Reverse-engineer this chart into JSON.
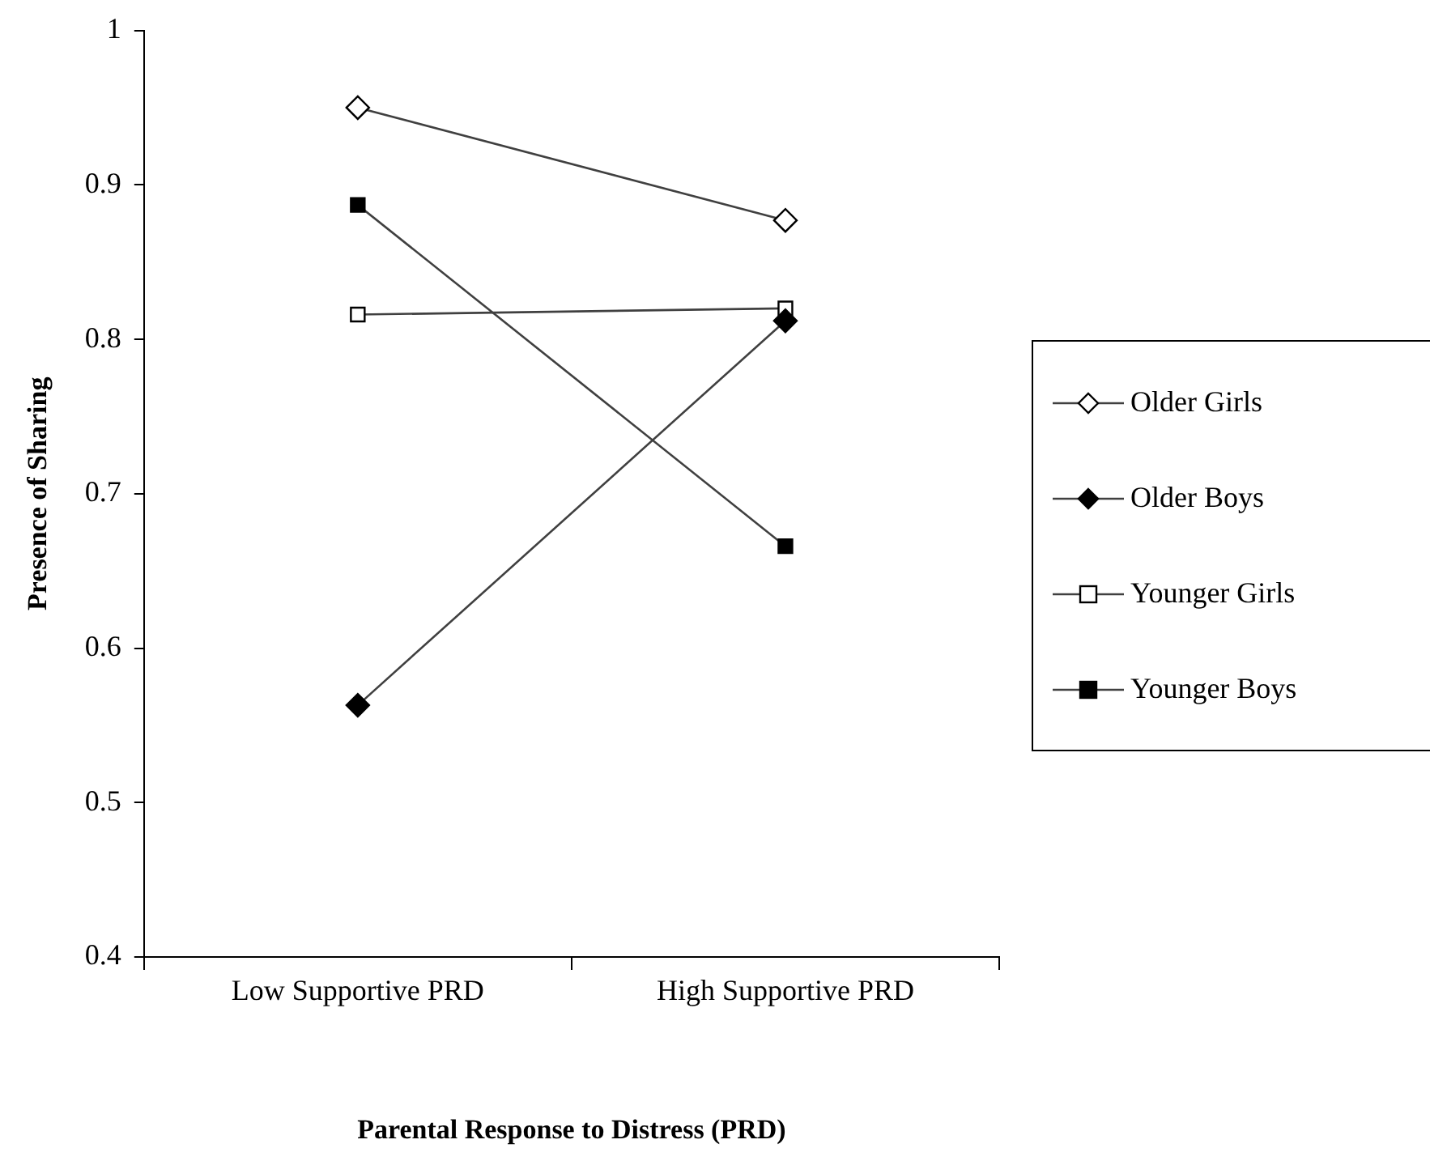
{
  "chart_data": {
    "type": "line",
    "xlabel": "Parental Response to Distress (PRD)",
    "ylabel": "Presence of Sharing",
    "categories": [
      "Low Supportive PRD",
      "High Supportive PRD"
    ],
    "series": [
      {
        "name": "Older Girls",
        "color": "#ffffff",
        "marker": "diamond",
        "values": [
          0.95,
          0.877
        ]
      },
      {
        "name": "Older Boys",
        "color": "#000000",
        "marker": "diamond",
        "values": [
          0.563,
          0.812
        ]
      },
      {
        "name": "Younger Girls",
        "color": "#ffffff",
        "marker": "square",
        "values": [
          0.816,
          0.82
        ]
      },
      {
        "name": "Younger Boys",
        "color": "#000000",
        "marker": "square",
        "values": [
          0.887,
          0.666
        ]
      }
    ],
    "ylim": [
      0.4,
      1
    ],
    "yticks": [
      0.4,
      0.5,
      0.6,
      0.7,
      0.8,
      0.9,
      1
    ],
    "grid": false,
    "legend": "right",
    "line_style": "solid"
  }
}
